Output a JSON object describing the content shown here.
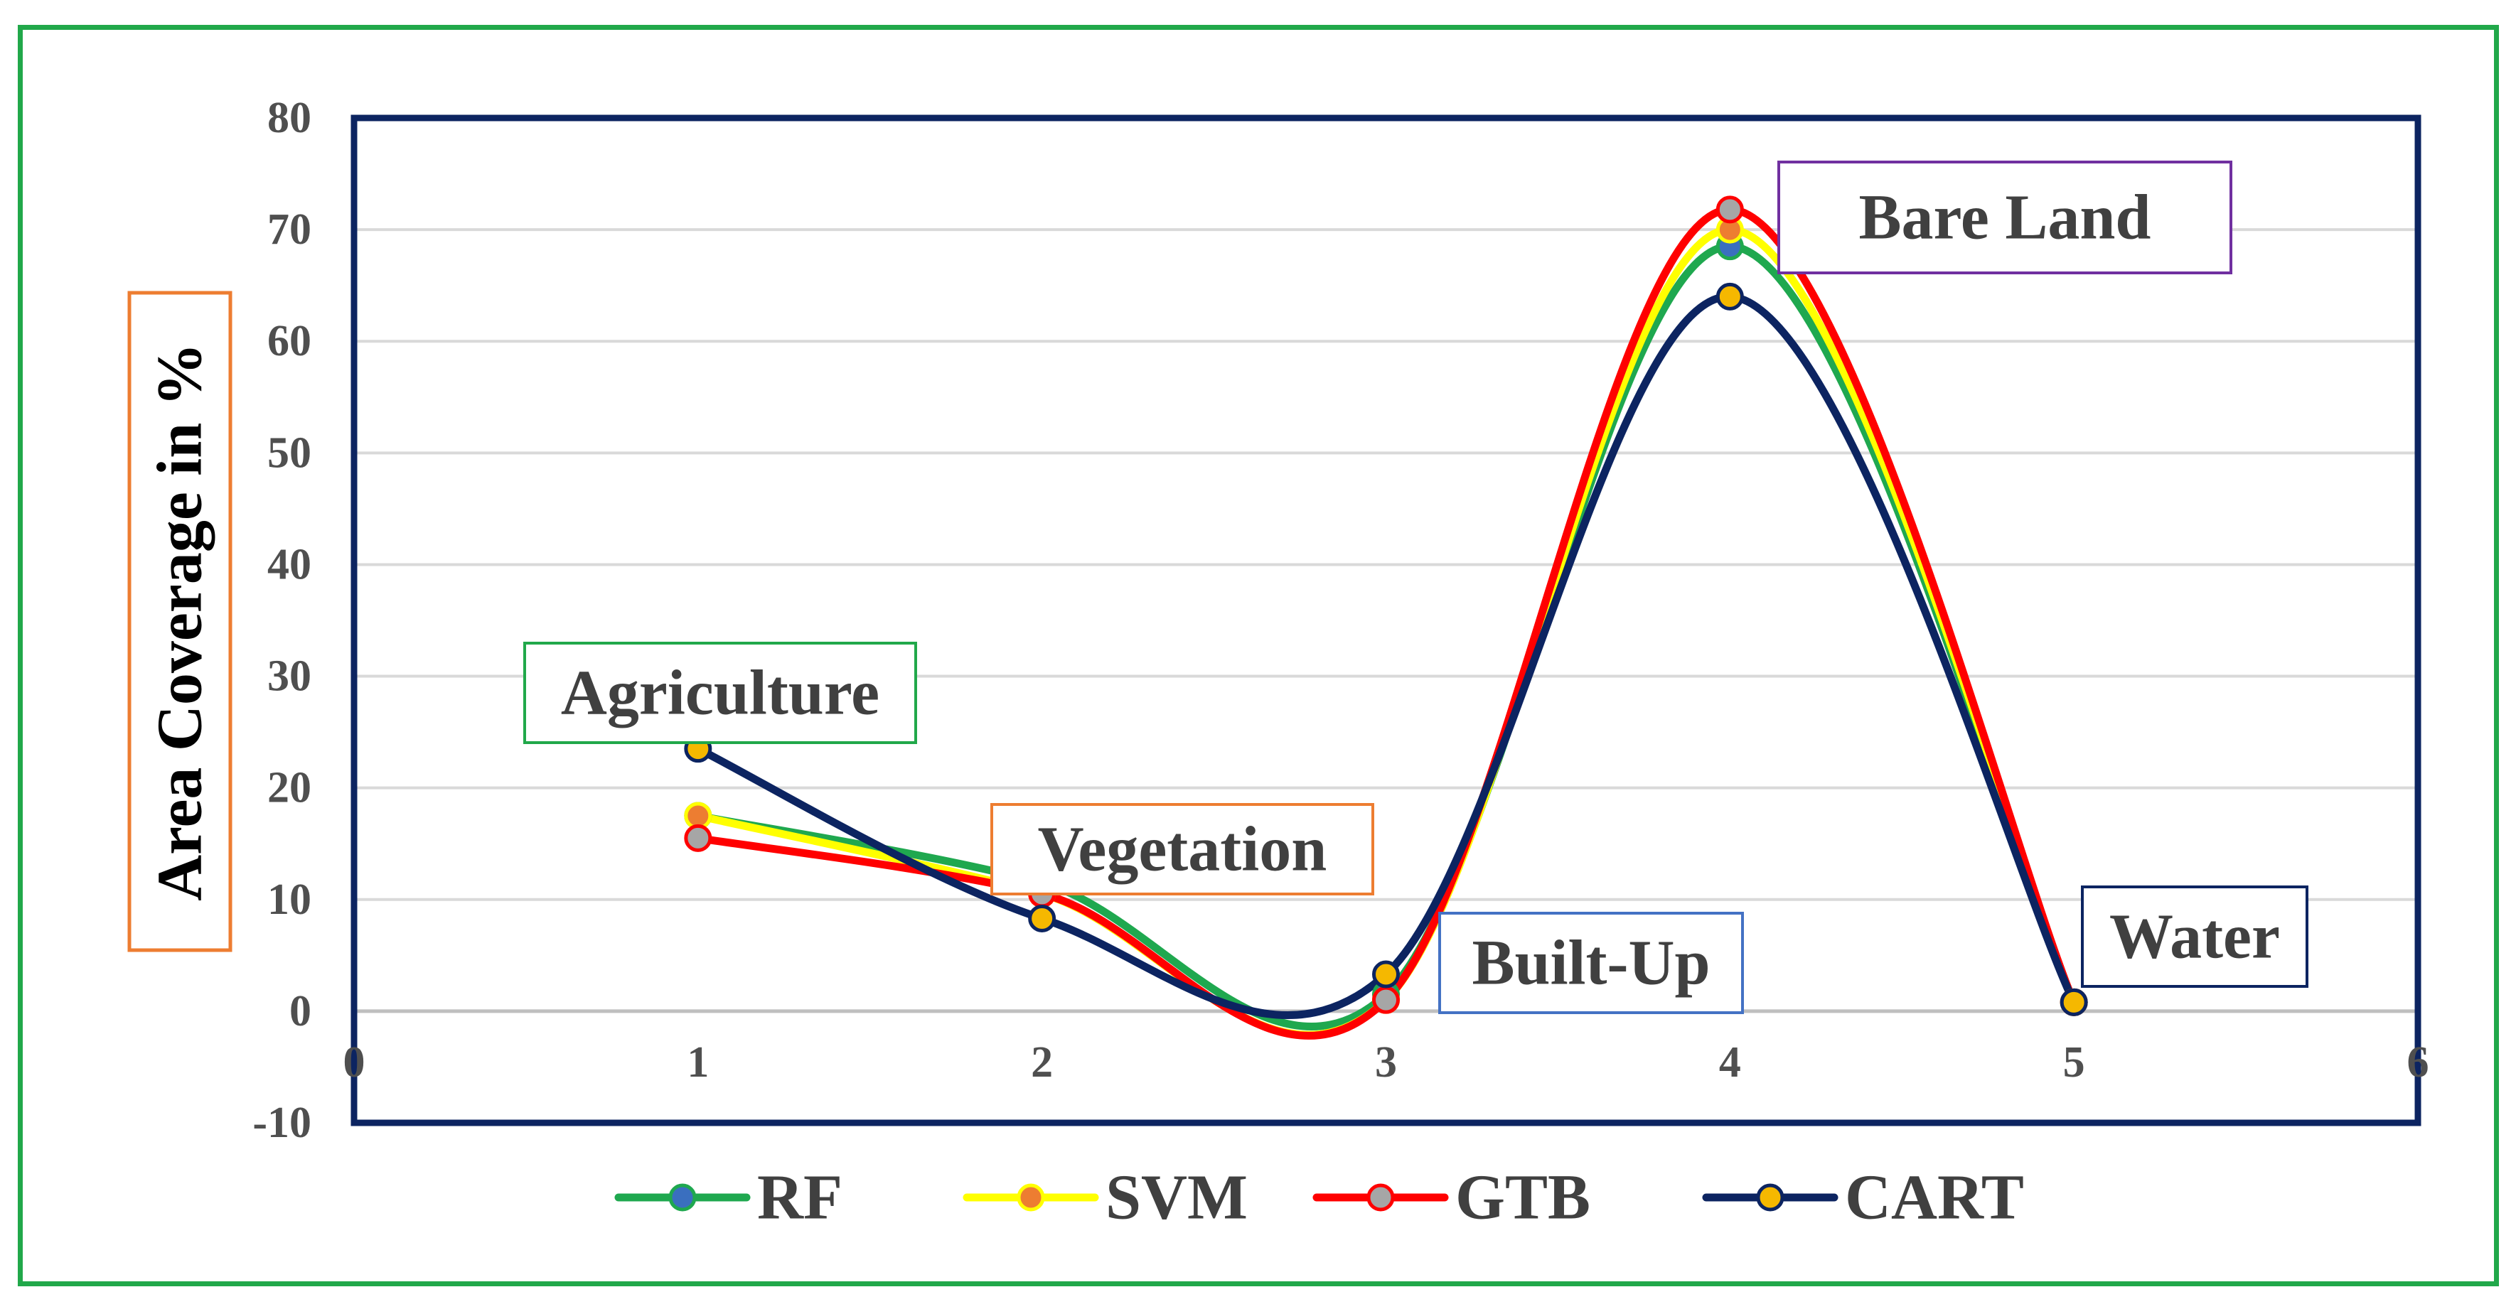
{
  "chart_data": {
    "type": "line",
    "title": "",
    "xlabel": "",
    "ylabel": "Area Coverage in %",
    "x": [
      1,
      2,
      3,
      4,
      5
    ],
    "xlim": [
      0,
      6
    ],
    "ylim": [
      -10,
      80
    ],
    "x_ticks": [
      0,
      1,
      2,
      3,
      4,
      5,
      6
    ],
    "y_ticks": [
      -10,
      0,
      10,
      20,
      30,
      40,
      50,
      60,
      70,
      80
    ],
    "grid": true,
    "smooth": true,
    "legend_position": "bottom",
    "series": [
      {
        "name": "RF",
        "values": [
          17.5,
          11.5,
          1.5,
          68.5,
          0.8
        ],
        "color": "#1fa84f",
        "marker_fill": "#3a6fbf"
      },
      {
        "name": "SVM",
        "values": [
          17.5,
          10.5,
          1.0,
          70.0,
          0.8
        ],
        "color": "#ffff00",
        "marker_fill": "#ed7d31"
      },
      {
        "name": "GTB",
        "values": [
          15.5,
          10.5,
          1.0,
          71.8,
          0.8
        ],
        "color": "#ff0000",
        "marker_fill": "#a6a6a6"
      },
      {
        "name": "CART",
        "values": [
          23.5,
          8.3,
          3.3,
          64.0,
          0.8
        ],
        "color": "#0c2461",
        "marker_fill": "#f5b800"
      }
    ],
    "annotations": [
      {
        "text": "Agriculture",
        "x": 1,
        "y": 23.5,
        "box_color": "#21a84a"
      },
      {
        "text": "Vegetation",
        "x": 2,
        "y": 11,
        "box_color": "#ed7d31"
      },
      {
        "text": "Built-Up",
        "x": 3,
        "y": 3,
        "box_color": "#4472c4"
      },
      {
        "text": "Bare Land",
        "x": 4,
        "y": 72,
        "box_color": "#7030a0"
      },
      {
        "text": "Water",
        "x": 5,
        "y": 0.8,
        "box_color": "#0c2461"
      }
    ]
  }
}
